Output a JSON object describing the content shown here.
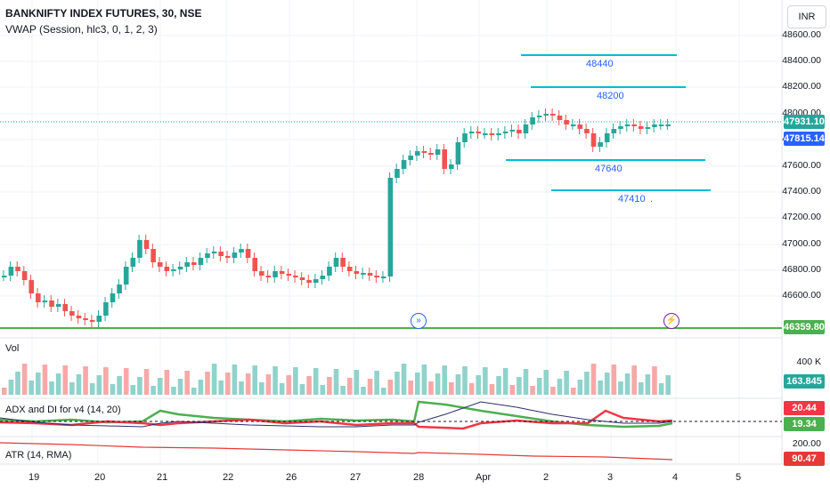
{
  "header": {
    "symbol": "BANKNIFTY INDEX FUTURES, 30, NSE",
    "indicator": "VWAP (Session, hlc3, 0, 1, 2, 3)",
    "currency_button": "INR"
  },
  "price_axis": {
    "ticks": [
      "48600.00",
      "48400.00",
      "48200.00",
      "48000.00",
      "47800.00",
      "47600.00",
      "47400.00",
      "47200.00",
      "47000.00",
      "46800.00",
      "46600.00"
    ],
    "last_price": "47931.10",
    "vwap_price": "47815.14",
    "support_price": "46359.80"
  },
  "levels": [
    "48440",
    "48200",
    "47640",
    "47410"
  ],
  "level_dot": ".",
  "volume": {
    "label": "Vol",
    "axis_tick": "400 K",
    "value": "163.845 K"
  },
  "adx": {
    "label": "ADX and DI for v4 (14, 20)",
    "di_plus": "20.44",
    "di_minus": "19.34"
  },
  "atr": {
    "label": "ATR (14, RMA)",
    "axis_tick": "200.00",
    "value": "90.47"
  },
  "x_axis": {
    "ticks": [
      "19",
      "20",
      "21",
      "22",
      "26",
      "27",
      "28",
      "Apr",
      "2",
      "3",
      "4",
      "5"
    ]
  },
  "colors": {
    "up": "#26a69a",
    "down": "#ef5350",
    "level": "#00bcd4",
    "support": "#4caf50",
    "adx_green": "#4caf50",
    "adx_red": "#f23645",
    "adx_blue": "#2a2e6b",
    "atr": "#e53935",
    "vwap_badge": "#2962ff"
  },
  "icons": {
    "replay": "replay-icon",
    "lightning": "lightning-icon"
  }
}
